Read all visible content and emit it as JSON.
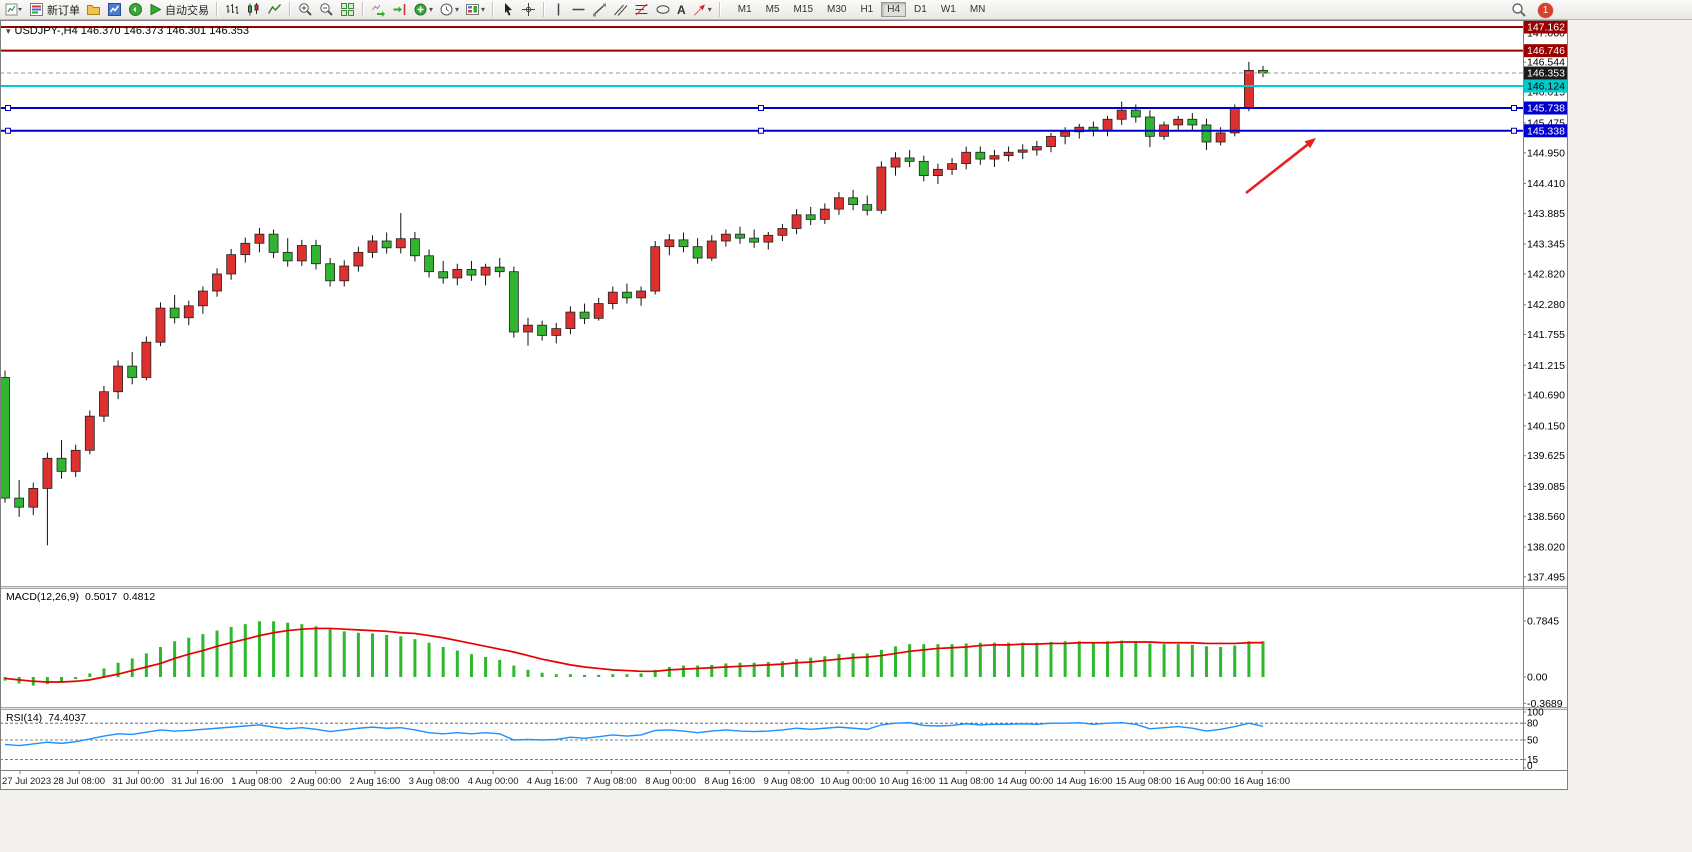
{
  "toolbar": {
    "new_order_label": "新订单",
    "auto_trading_label": "自动交易",
    "timeframes": [
      "M1",
      "M5",
      "M15",
      "M30",
      "H1",
      "H4",
      "D1",
      "W1",
      "MN"
    ],
    "active_timeframe": "H4",
    "notification_count": "1",
    "text_tool_glyph": "A"
  },
  "chart": {
    "title_symbol": "USDJPY-,H4",
    "title_ohlc": "146.370 146.373 146.301 146.353"
  },
  "chart_data": [
    {
      "type": "candlestick",
      "symbol": "USDJPY-",
      "timeframe": "H4",
      "current_price": {
        "value": 146.353,
        "label": "146.353"
      },
      "colors": {
        "bull": "#df3030",
        "bear": "#2fb52f",
        "wick": "#111111"
      },
      "y_axis_labels": [
        "147.060",
        "146.544",
        "146.015",
        "145.475",
        "144.950",
        "144.410",
        "143.885",
        "143.345",
        "142.820",
        "142.280",
        "141.755",
        "141.215",
        "140.690",
        "140.150",
        "139.625",
        "139.085",
        "138.560",
        "138.020",
        "137.495"
      ],
      "x_labels": [
        "27 Jul 2023",
        "28 Jul 08:00",
        "31 Jul 00:00",
        "31 Jul 16:00",
        "1 Aug 08:00",
        "2 Aug 00:00",
        "2 Aug 16:00",
        "3 Aug 08:00",
        "4 Aug 00:00",
        "4 Aug 16:00",
        "7 Aug 08:00",
        "8 Aug 00:00",
        "8 Aug 16:00",
        "9 Aug 08:00",
        "10 Aug 00:00",
        "10 Aug 16:00",
        "11 Aug 08:00",
        "14 Aug 00:00",
        "14 Aug 16:00",
        "15 Aug 08:00",
        "16 Aug 00:00",
        "16 Aug 16:00"
      ],
      "price_badges": [
        {
          "text": "147.162",
          "value": 147.162,
          "bg": "#990000",
          "fg": "#ffffff"
        },
        {
          "text": "146.746",
          "value": 146.746,
          "bg": "#990000",
          "fg": "#ffffff"
        },
        {
          "text": "146.353",
          "value": 146.353,
          "bg": "#1a1a1a",
          "fg": "#ffffff"
        },
        {
          "text": "146.124",
          "value": 146.124,
          "bg": "#00cccc",
          "fg": "#000000"
        },
        {
          "text": "145.738",
          "value": 145.738,
          "bg": "#0000cc",
          "fg": "#ffffff"
        },
        {
          "text": "145.338",
          "value": 145.338,
          "bg": "#0000cc",
          "fg": "#ffffff"
        }
      ],
      "hlines": [
        {
          "value": 147.162,
          "color": "#990000",
          "width": 2,
          "handles": false
        },
        {
          "value": 146.746,
          "color": "#990000",
          "width": 2,
          "handles": false
        },
        {
          "value": 146.124,
          "color": "#00cccc",
          "width": 2,
          "handles": false
        },
        {
          "value": 145.738,
          "color": "#0000cc",
          "width": 2,
          "handles": true
        },
        {
          "value": 145.338,
          "color": "#0000cc",
          "width": 2,
          "handles": true
        }
      ],
      "arrow": {
        "color": "#e32222",
        "direction": "up-right"
      },
      "candles": [
        [
          141.0,
          141.12,
          138.8,
          138.88
        ],
        [
          138.88,
          139.2,
          138.55,
          138.72
        ],
        [
          138.72,
          139.15,
          138.58,
          139.05
        ],
        [
          139.05,
          139.68,
          138.05,
          139.58
        ],
        [
          139.58,
          139.9,
          139.22,
          139.35
        ],
        [
          139.35,
          139.82,
          139.25,
          139.72
        ],
        [
          139.72,
          140.42,
          139.65,
          140.32
        ],
        [
          140.32,
          140.85,
          140.22,
          140.75
        ],
        [
          140.75,
          141.3,
          140.62,
          141.2
        ],
        [
          141.2,
          141.45,
          140.88,
          141.0
        ],
        [
          141.0,
          141.72,
          140.95,
          141.62
        ],
        [
          141.62,
          142.32,
          141.55,
          142.22
        ],
        [
          142.22,
          142.45,
          141.95,
          142.05
        ],
        [
          142.05,
          142.35,
          141.92,
          142.26
        ],
        [
          142.26,
          142.6,
          142.12,
          142.52
        ],
        [
          142.52,
          142.92,
          142.42,
          142.82
        ],
        [
          142.82,
          143.26,
          142.72,
          143.16
        ],
        [
          143.16,
          143.46,
          143.02,
          143.36
        ],
        [
          143.36,
          143.63,
          143.2,
          143.52
        ],
        [
          143.52,
          143.6,
          143.1,
          143.2
        ],
        [
          143.2,
          143.45,
          142.95,
          143.05
        ],
        [
          143.05,
          143.42,
          142.96,
          143.32
        ],
        [
          143.32,
          143.42,
          142.9,
          143.0
        ],
        [
          143.0,
          143.1,
          142.6,
          142.7
        ],
        [
          142.7,
          143.06,
          142.6,
          142.96
        ],
        [
          142.96,
          143.3,
          142.86,
          143.2
        ],
        [
          143.2,
          143.5,
          143.1,
          143.4
        ],
        [
          143.4,
          143.55,
          143.18,
          143.28
        ],
        [
          143.28,
          143.89,
          143.18,
          143.44
        ],
        [
          143.44,
          143.56,
          143.04,
          143.14
        ],
        [
          143.14,
          143.25,
          142.76,
          142.86
        ],
        [
          142.86,
          143.05,
          142.65,
          142.75
        ],
        [
          142.75,
          143.0,
          142.62,
          142.9
        ],
        [
          142.9,
          143.05,
          142.7,
          142.8
        ],
        [
          142.8,
          143.0,
          142.62,
          142.94
        ],
        [
          142.94,
          143.1,
          142.76,
          142.86
        ],
        [
          142.86,
          142.95,
          141.7,
          141.8
        ],
        [
          141.8,
          142.05,
          141.56,
          141.92
        ],
        [
          141.92,
          142.0,
          141.65,
          141.74
        ],
        [
          141.74,
          141.96,
          141.6,
          141.86
        ],
        [
          141.86,
          142.25,
          141.76,
          142.15
        ],
        [
          142.15,
          142.3,
          141.94,
          142.04
        ],
        [
          142.04,
          142.4,
          142.0,
          142.3
        ],
        [
          142.3,
          142.6,
          142.2,
          142.5
        ],
        [
          142.5,
          142.65,
          142.3,
          142.4
        ],
        [
          142.4,
          142.6,
          142.26,
          142.52
        ],
        [
          142.52,
          143.4,
          142.46,
          143.3
        ],
        [
          143.3,
          143.52,
          143.15,
          143.42
        ],
        [
          143.42,
          143.55,
          143.2,
          143.3
        ],
        [
          143.3,
          143.45,
          143.0,
          143.1
        ],
        [
          143.1,
          143.5,
          143.05,
          143.4
        ],
        [
          143.4,
          143.6,
          143.3,
          143.52
        ],
        [
          143.52,
          143.65,
          143.35,
          143.45
        ],
        [
          143.45,
          143.6,
          143.28,
          143.38
        ],
        [
          143.38,
          143.56,
          143.25,
          143.5
        ],
        [
          143.5,
          143.7,
          143.4,
          143.62
        ],
        [
          143.62,
          143.96,
          143.52,
          143.86
        ],
        [
          143.86,
          144.0,
          143.68,
          143.78
        ],
        [
          143.78,
          144.06,
          143.7,
          143.96
        ],
        [
          143.96,
          144.26,
          143.86,
          144.16
        ],
        [
          144.16,
          144.3,
          143.94,
          144.04
        ],
        [
          144.04,
          144.2,
          143.85,
          143.94
        ],
        [
          143.94,
          144.8,
          143.88,
          144.7
        ],
        [
          144.7,
          144.96,
          144.55,
          144.86
        ],
        [
          144.86,
          145.0,
          144.7,
          144.8
        ],
        [
          144.8,
          144.9,
          144.45,
          144.55
        ],
        [
          144.55,
          144.76,
          144.4,
          144.66
        ],
        [
          144.66,
          144.86,
          144.56,
          144.76
        ],
        [
          144.76,
          145.06,
          144.66,
          144.96
        ],
        [
          144.96,
          145.06,
          144.74,
          144.84
        ],
        [
          144.84,
          145.0,
          144.7,
          144.9
        ],
        [
          144.9,
          145.06,
          144.8,
          144.96
        ],
        [
          144.96,
          145.1,
          144.84,
          145.0
        ],
        [
          145.0,
          145.16,
          144.9,
          145.06
        ],
        [
          145.06,
          145.3,
          144.96,
          145.24
        ],
        [
          145.24,
          145.4,
          145.1,
          145.32
        ],
        [
          145.32,
          145.46,
          145.2,
          145.4
        ],
        [
          145.4,
          145.5,
          145.24,
          145.34
        ],
        [
          145.34,
          145.6,
          145.24,
          145.54
        ],
        [
          145.54,
          145.85,
          145.44,
          145.7
        ],
        [
          145.7,
          145.8,
          145.48,
          145.58
        ],
        [
          145.58,
          145.7,
          145.05,
          145.24
        ],
        [
          145.24,
          145.5,
          145.18,
          145.44
        ],
        [
          145.44,
          145.6,
          145.34,
          145.54
        ],
        [
          145.54,
          145.65,
          145.34,
          145.44
        ],
        [
          145.44,
          145.55,
          145.0,
          145.14
        ],
        [
          145.14,
          145.4,
          145.08,
          145.3
        ],
        [
          145.3,
          145.8,
          145.24,
          145.74
        ],
        [
          145.74,
          146.55,
          145.68,
          146.4
        ],
        [
          146.4,
          146.48,
          146.28,
          146.353
        ]
      ]
    },
    {
      "type": "macd",
      "label": "MACD(12,26,9)",
      "value_main": "0.5017",
      "value_signal": "0.4812",
      "y_axis_labels": [
        "0.7845",
        "0.00",
        "-0.3689"
      ],
      "colors": {
        "histogram": "#2eb82e",
        "signal": "#e60000"
      },
      "histogram": [
        -0.05,
        -0.09,
        -0.12,
        -0.1,
        -0.07,
        -0.03,
        0.05,
        0.12,
        0.2,
        0.26,
        0.33,
        0.42,
        0.5,
        0.55,
        0.6,
        0.65,
        0.7,
        0.74,
        0.78,
        0.78,
        0.76,
        0.74,
        0.71,
        0.67,
        0.64,
        0.62,
        0.61,
        0.59,
        0.57,
        0.53,
        0.48,
        0.42,
        0.37,
        0.32,
        0.28,
        0.24,
        0.16,
        0.1,
        0.06,
        0.04,
        0.04,
        0.03,
        0.03,
        0.04,
        0.04,
        0.05,
        0.1,
        0.14,
        0.16,
        0.16,
        0.17,
        0.19,
        0.2,
        0.2,
        0.21,
        0.22,
        0.25,
        0.27,
        0.29,
        0.32,
        0.33,
        0.33,
        0.38,
        0.43,
        0.46,
        0.46,
        0.46,
        0.46,
        0.47,
        0.48,
        0.48,
        0.48,
        0.48,
        0.48,
        0.49,
        0.5,
        0.5,
        0.49,
        0.5,
        0.51,
        0.5,
        0.47,
        0.46,
        0.46,
        0.45,
        0.43,
        0.42,
        0.44,
        0.5,
        0.5017
      ],
      "signal": [
        -0.02,
        -0.04,
        -0.06,
        -0.07,
        -0.07,
        -0.06,
        -0.04,
        0.0,
        0.04,
        0.09,
        0.14,
        0.19,
        0.26,
        0.32,
        0.37,
        0.43,
        0.48,
        0.53,
        0.58,
        0.62,
        0.65,
        0.67,
        0.68,
        0.68,
        0.67,
        0.66,
        0.65,
        0.64,
        0.62,
        0.61,
        0.58,
        0.55,
        0.51,
        0.47,
        0.43,
        0.39,
        0.35,
        0.3,
        0.25,
        0.21,
        0.17,
        0.14,
        0.12,
        0.1,
        0.09,
        0.08,
        0.08,
        0.1,
        0.11,
        0.12,
        0.13,
        0.14,
        0.15,
        0.16,
        0.17,
        0.18,
        0.2,
        0.21,
        0.23,
        0.25,
        0.27,
        0.28,
        0.3,
        0.33,
        0.36,
        0.38,
        0.4,
        0.41,
        0.42,
        0.44,
        0.45,
        0.45,
        0.46,
        0.46,
        0.47,
        0.47,
        0.48,
        0.48,
        0.48,
        0.49,
        0.49,
        0.49,
        0.48,
        0.48,
        0.48,
        0.47,
        0.47,
        0.47,
        0.48,
        0.4812
      ]
    },
    {
      "type": "rsi",
      "label": "RSI(14)",
      "value": "74.4037",
      "y_axis_labels": [
        "100",
        "80",
        "50",
        "15",
        "0"
      ],
      "levels": [
        80,
        50,
        15
      ],
      "color": "#1e90ff",
      "values": [
        42,
        40,
        43,
        46,
        44,
        47,
        52,
        57,
        61,
        60,
        64,
        68,
        66,
        67,
        69,
        71,
        73,
        75,
        77,
        73,
        70,
        72,
        69,
        65,
        68,
        71,
        73,
        71,
        72,
        68,
        63,
        61,
        63,
        61,
        63,
        61,
        50,
        51,
        50,
        51,
        55,
        53,
        56,
        59,
        57,
        59,
        67,
        68,
        66,
        63,
        66,
        68,
        66,
        65,
        66,
        68,
        71,
        69,
        71,
        73,
        71,
        69,
        77,
        80,
        81,
        76,
        75,
        76,
        79,
        77,
        78,
        78,
        79,
        78,
        80,
        80,
        81,
        78,
        80,
        81,
        78,
        70,
        72,
        74,
        71,
        66,
        69,
        74,
        80,
        74.4
      ]
    }
  ]
}
